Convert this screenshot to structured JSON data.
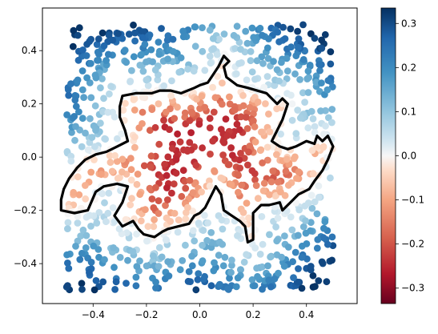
{
  "chart_data": {
    "type": "scatter",
    "title": "",
    "xlabel": "",
    "ylabel": "",
    "xlim": [
      -0.59,
      0.59
    ],
    "ylim": [
      -0.55,
      0.56
    ],
    "x_ticks": [
      -0.4,
      -0.2,
      0.0,
      0.2,
      0.4
    ],
    "x_tick_labels": [
      "−0.4",
      "−0.2",
      "0.0",
      "0.2",
      "0.4"
    ],
    "y_ticks": [
      -0.4,
      -0.2,
      0.0,
      0.2,
      0.4
    ],
    "y_tick_labels": [
      "−0.4",
      "−0.2",
      "0.0",
      "0.2",
      "0.4"
    ],
    "grid": false,
    "point_color": "value",
    "colormap": "RdBu",
    "colorbar": {
      "range": [
        -0.335,
        0.335
      ],
      "ticks": [
        -0.3,
        -0.2,
        -0.1,
        0.0,
        0.1,
        0.2,
        0.3
      ],
      "tick_labels": [
        "−0.3",
        "−0.2",
        "−0.1",
        "0.0",
        "0.1",
        "0.2",
        "0.3"
      ]
    },
    "scatter_domain": {
      "x": [
        -0.5,
        0.5
      ],
      "y": [
        -0.5,
        0.5
      ]
    },
    "boundary_outline": {
      "color": "#000000",
      "points": [
        [
          -0.52,
          -0.2
        ],
        [
          -0.47,
          -0.21
        ],
        [
          -0.42,
          -0.2
        ],
        [
          -0.39,
          -0.13
        ],
        [
          -0.36,
          -0.11
        ],
        [
          -0.31,
          -0.1
        ],
        [
          -0.27,
          -0.11
        ],
        [
          -0.29,
          -0.17
        ],
        [
          -0.32,
          -0.22
        ],
        [
          -0.29,
          -0.26
        ],
        [
          -0.25,
          -0.24
        ],
        [
          -0.23,
          -0.27
        ],
        [
          -0.21,
          -0.29
        ],
        [
          -0.17,
          -0.3
        ],
        [
          -0.14,
          -0.28
        ],
        [
          -0.12,
          -0.27
        ],
        [
          -0.08,
          -0.26
        ],
        [
          -0.04,
          -0.25
        ],
        [
          -0.02,
          -0.22
        ],
        [
          0.0,
          -0.21
        ],
        [
          0.02,
          -0.19
        ],
        [
          0.05,
          -0.13
        ],
        [
          0.06,
          -0.11
        ],
        [
          0.08,
          -0.14
        ],
        [
          0.09,
          -0.2
        ],
        [
          0.12,
          -0.22
        ],
        [
          0.15,
          -0.24
        ],
        [
          0.17,
          -0.26
        ],
        [
          0.18,
          -0.32
        ],
        [
          0.2,
          -0.31
        ],
        [
          0.2,
          -0.21
        ],
        [
          0.23,
          -0.18
        ],
        [
          0.26,
          -0.18
        ],
        [
          0.3,
          -0.17
        ],
        [
          0.31,
          -0.2
        ],
        [
          0.34,
          -0.17
        ],
        [
          0.37,
          -0.14
        ],
        [
          0.41,
          -0.12
        ],
        [
          0.43,
          -0.09
        ],
        [
          0.46,
          -0.05
        ],
        [
          0.48,
          -0.01
        ],
        [
          0.5,
          0.04
        ],
        [
          0.48,
          0.08
        ],
        [
          0.46,
          0.06
        ],
        [
          0.44,
          0.08
        ],
        [
          0.43,
          0.05
        ],
        [
          0.4,
          0.06
        ],
        [
          0.36,
          0.04
        ],
        [
          0.33,
          0.03
        ],
        [
          0.3,
          0.04
        ],
        [
          0.27,
          0.06
        ],
        [
          0.29,
          0.1
        ],
        [
          0.31,
          0.14
        ],
        [
          0.33,
          0.2
        ],
        [
          0.31,
          0.22
        ],
        [
          0.29,
          0.2
        ],
        [
          0.25,
          0.24
        ],
        [
          0.18,
          0.26
        ],
        [
          0.14,
          0.27
        ],
        [
          0.1,
          0.3
        ],
        [
          0.09,
          0.34
        ],
        [
          0.11,
          0.36
        ],
        [
          0.09,
          0.38
        ],
        [
          0.07,
          0.34
        ],
        [
          0.05,
          0.31
        ],
        [
          0.03,
          0.28
        ],
        [
          0.0,
          0.27
        ],
        [
          -0.02,
          0.26
        ],
        [
          -0.07,
          0.24
        ],
        [
          -0.11,
          0.25
        ],
        [
          -0.15,
          0.25
        ],
        [
          -0.18,
          0.24
        ],
        [
          -0.24,
          0.24
        ],
        [
          -0.29,
          0.23
        ],
        [
          -0.3,
          0.19
        ],
        [
          -0.3,
          0.15
        ],
        [
          -0.28,
          0.1
        ],
        [
          -0.27,
          0.06
        ],
        [
          -0.31,
          0.04
        ],
        [
          -0.35,
          0.02
        ],
        [
          -0.39,
          0.01
        ],
        [
          -0.43,
          -0.01
        ],
        [
          -0.46,
          -0.04
        ],
        [
          -0.49,
          -0.08
        ],
        [
          -0.51,
          -0.12
        ],
        [
          -0.52,
          -0.16
        ],
        [
          -0.52,
          -0.2
        ]
      ]
    }
  }
}
